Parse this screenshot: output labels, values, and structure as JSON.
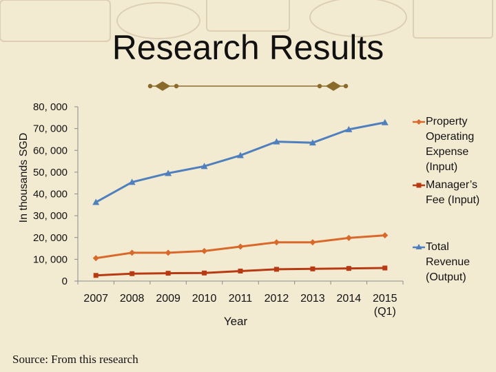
{
  "slide": {
    "title": "Research Results",
    "source": "Source: From this research"
  },
  "colors": {
    "background": "#f3ead2",
    "accent_brown": "#8a6a2a",
    "property_expense": "#d9692a",
    "manager_fee": "#b83a12",
    "total_revenue": "#4f80bd"
  },
  "chart_data": {
    "type": "line",
    "title": "",
    "xlabel": "Year",
    "ylabel": "In thousands SGD",
    "categories": [
      "2007",
      "2008",
      "2009",
      "2010",
      "2011",
      "2012",
      "2013",
      "2014",
      "2015 (Q1)"
    ],
    "ylim": [
      0,
      80000
    ],
    "yticks": [
      0,
      10000,
      20000,
      30000,
      40000,
      50000,
      60000,
      70000,
      80000
    ],
    "ytick_labels": [
      "0",
      "10, 000",
      "20, 000",
      "30, 000",
      "40, 000",
      "50, 000",
      "60, 000",
      "70, 000",
      "80, 000"
    ],
    "grid": false,
    "legend_position": "right",
    "series": [
      {
        "name": "Property Operating Expense (Input)",
        "color": "#d9692a",
        "marker": "diamond",
        "values": [
          10500,
          13000,
          13000,
          13800,
          15800,
          17800,
          17800,
          19800,
          21000
        ]
      },
      {
        "name": "Manager’s Fee (Input)",
        "color": "#b83a12",
        "marker": "square",
        "values": [
          2600,
          3400,
          3600,
          3700,
          4600,
          5400,
          5600,
          5800,
          6000
        ]
      },
      {
        "name": "Total Revenue (Output)",
        "color": "#4f80bd",
        "marker": "triangle",
        "values": [
          36200,
          45400,
          49500,
          52700,
          57700,
          64000,
          63500,
          69600,
          72800
        ]
      }
    ]
  }
}
